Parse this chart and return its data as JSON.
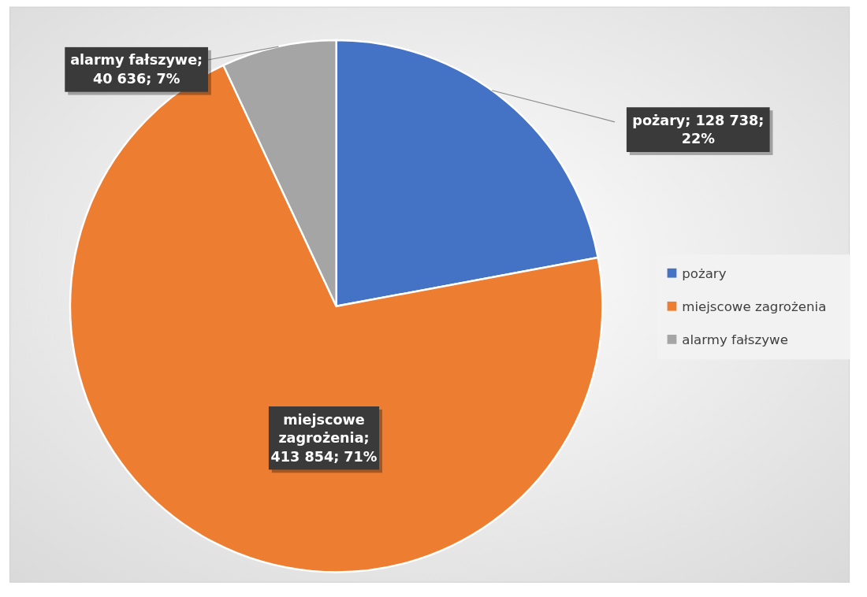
{
  "chart_data": {
    "type": "pie",
    "categories": [
      "pożary",
      "miejscowe zagrożenia",
      "alarmy fałszywe"
    ],
    "values": [
      128738,
      413854,
      40636
    ],
    "colors": [
      "#4472c4",
      "#ed7d31",
      "#a5a5a5"
    ],
    "value_labels": [
      "pożary; 128 738; 22%",
      "miejscowe zagrożenia; 413 854; 71%",
      "alarmy fałszywe; 40 636; 7%"
    ],
    "legend": "right"
  }
}
